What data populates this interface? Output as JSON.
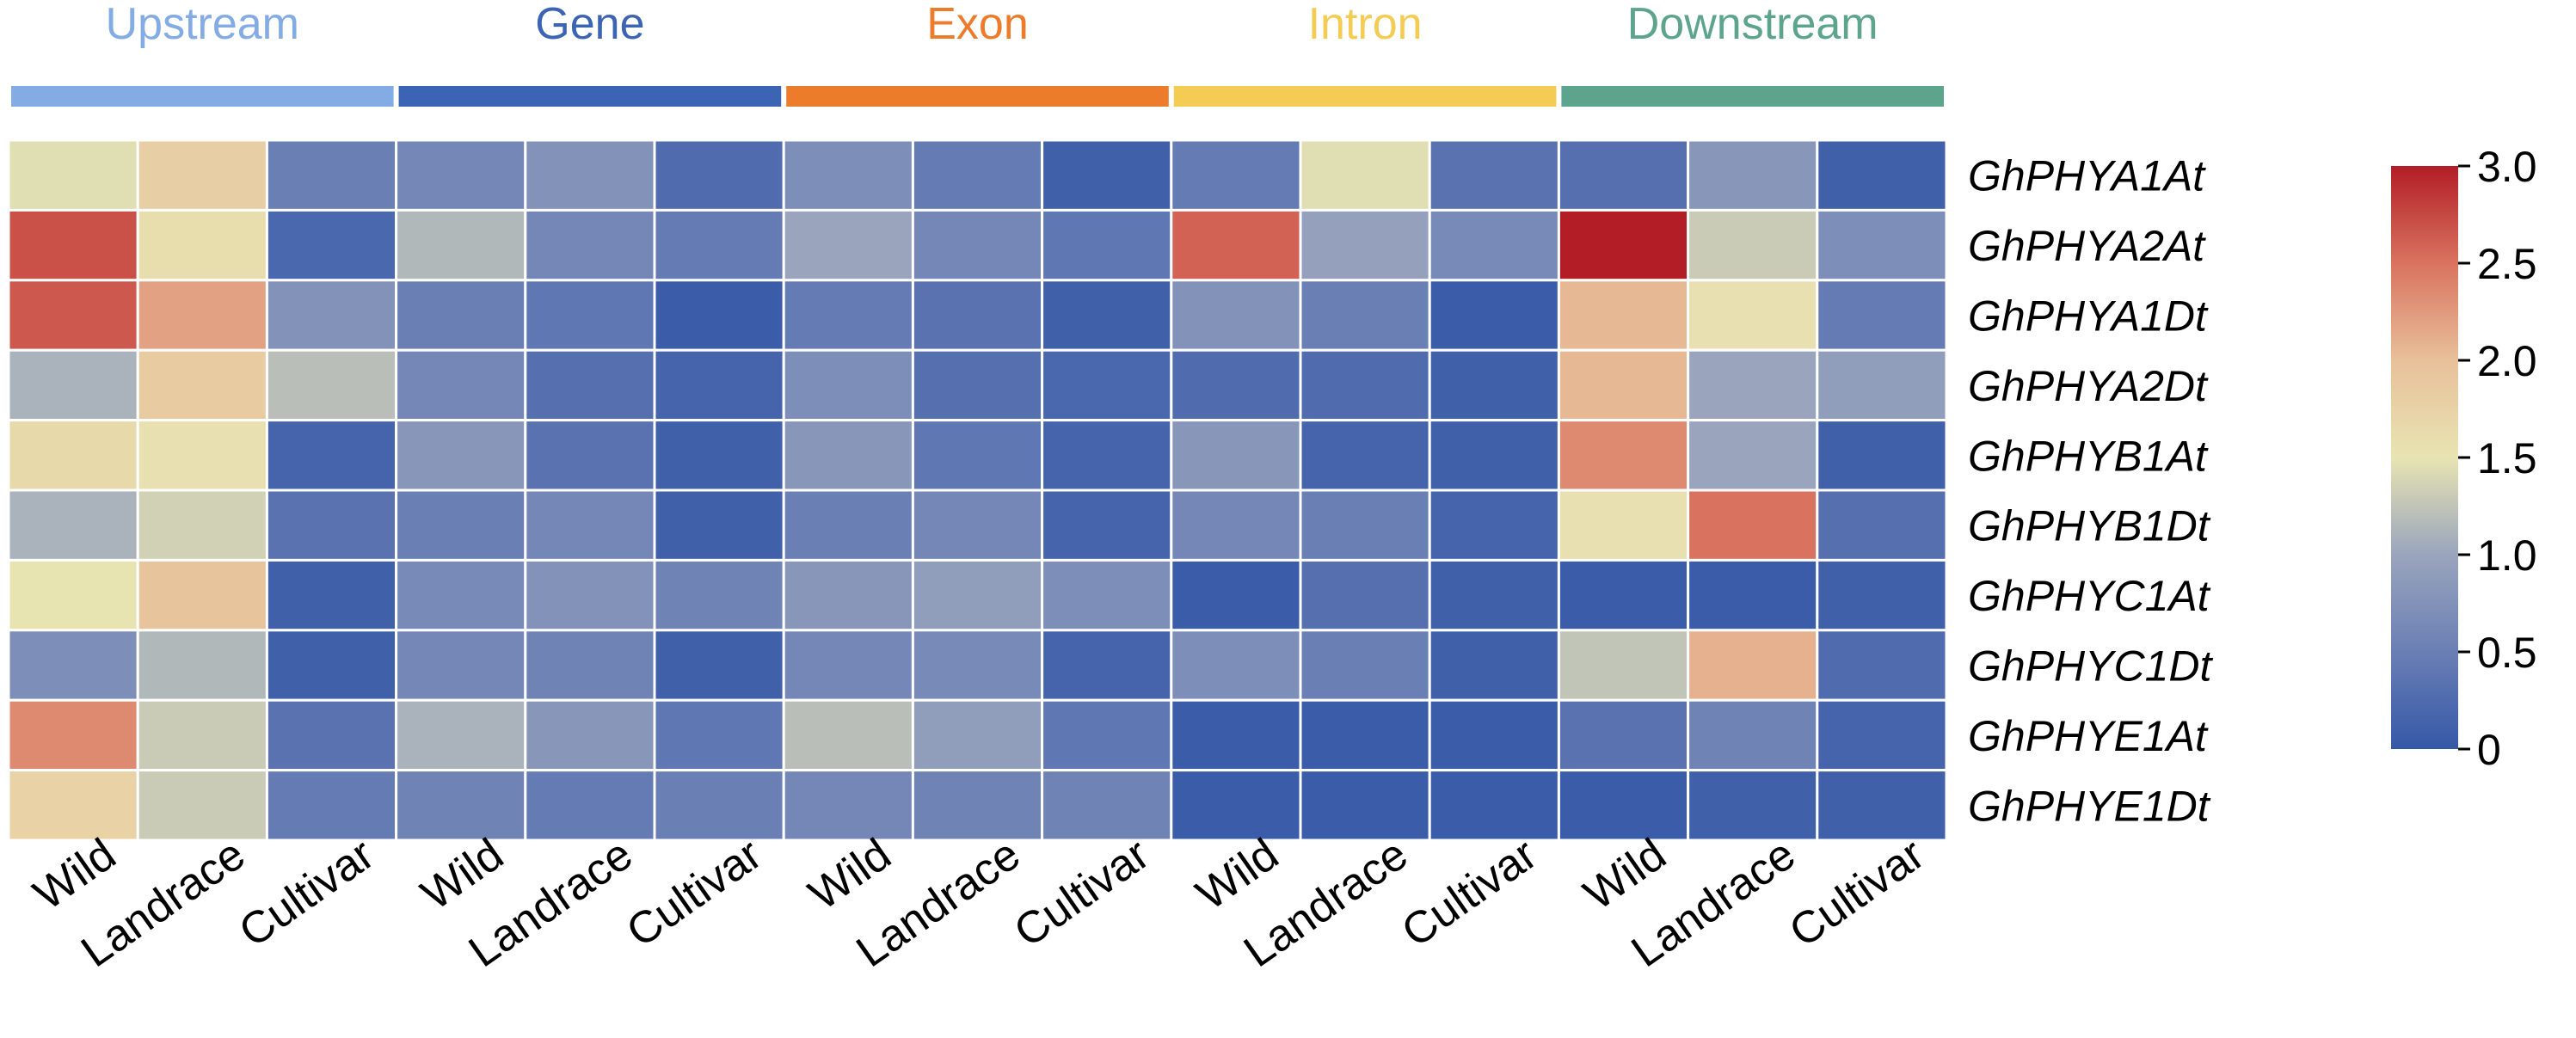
{
  "chart_data": {
    "type": "heatmap",
    "groups": [
      {
        "label": "Upstream",
        "color": "#84ace4"
      },
      {
        "label": "Gene",
        "color": "#3c64b4"
      },
      {
        "label": "Exon",
        "color": "#ec7c2c"
      },
      {
        "label": "Intron",
        "color": "#f4cc54"
      },
      {
        "label": "Downstream",
        "color": "#5ca48c"
      }
    ],
    "columns": [
      "Wild",
      "Landrace",
      "Cultivar",
      "Wild",
      "Landrace",
      "Cultivar",
      "Wild",
      "Landrace",
      "Cultivar",
      "Wild",
      "Landrace",
      "Cultivar",
      "Wild",
      "Landrace",
      "Cultivar"
    ],
    "rows": [
      "GhPHYA1At",
      "GhPHYA2At",
      "GhPHYA1Dt",
      "GhPHYA2Dt",
      "GhPHYB1At",
      "GhPHYB1Dt",
      "GhPHYC1At",
      "GhPHYC1Dt",
      "GhPHYE1At",
      "GhPHYE1Dt"
    ],
    "values": [
      [
        1.45,
        1.8,
        0.5,
        0.6,
        0.75,
        0.25,
        0.7,
        0.45,
        0.1,
        0.45,
        1.45,
        0.35,
        0.3,
        0.8,
        0.1
      ],
      [
        2.7,
        1.6,
        0.2,
        1.15,
        0.6,
        0.45,
        1.0,
        0.6,
        0.4,
        2.6,
        0.95,
        0.65,
        3.0,
        1.3,
        0.7
      ],
      [
        2.65,
        2.2,
        0.75,
        0.5,
        0.4,
        0.05,
        0.45,
        0.35,
        0.1,
        0.75,
        0.5,
        0.05,
        2.05,
        1.55,
        0.45
      ],
      [
        1.1,
        1.85,
        1.2,
        0.6,
        0.3,
        0.15,
        0.7,
        0.3,
        0.2,
        0.25,
        0.25,
        0.1,
        2.05,
        1.0,
        0.9
      ],
      [
        1.65,
        1.55,
        0.15,
        0.8,
        0.35,
        0.1,
        0.8,
        0.4,
        0.15,
        0.8,
        0.15,
        0.1,
        2.35,
        1.0,
        0.1
      ],
      [
        1.1,
        1.35,
        0.35,
        0.5,
        0.6,
        0.1,
        0.5,
        0.6,
        0.15,
        0.6,
        0.5,
        0.15,
        1.55,
        2.5,
        0.3
      ],
      [
        1.5,
        1.95,
        0.1,
        0.65,
        0.75,
        0.55,
        0.8,
        0.9,
        0.7,
        0.05,
        0.3,
        0.1,
        0.05,
        0.05,
        0.1
      ],
      [
        0.7,
        1.15,
        0.1,
        0.6,
        0.55,
        0.1,
        0.6,
        0.65,
        0.15,
        0.7,
        0.5,
        0.1,
        1.25,
        2.1,
        0.25
      ],
      [
        2.35,
        1.3,
        0.35,
        1.1,
        0.8,
        0.4,
        1.2,
        0.9,
        0.4,
        0.05,
        0.05,
        0.05,
        0.35,
        0.55,
        0.15
      ],
      [
        1.75,
        1.3,
        0.45,
        0.55,
        0.45,
        0.5,
        0.6,
        0.55,
        0.55,
        0.05,
        0.05,
        0.05,
        0.05,
        0.1,
        0.1
      ]
    ],
    "colorbar": {
      "min": 0,
      "max": 3,
      "ticks": [
        "0",
        "0.5",
        "1.0",
        "1.5",
        "2.0",
        "2.5",
        "3.0"
      ],
      "colors": [
        "#3558a8",
        "#6a7fb4",
        "#9aa5bd",
        "#e8e4b2",
        "#e8c09a",
        "#d9735f",
        "#b21d26"
      ]
    }
  }
}
